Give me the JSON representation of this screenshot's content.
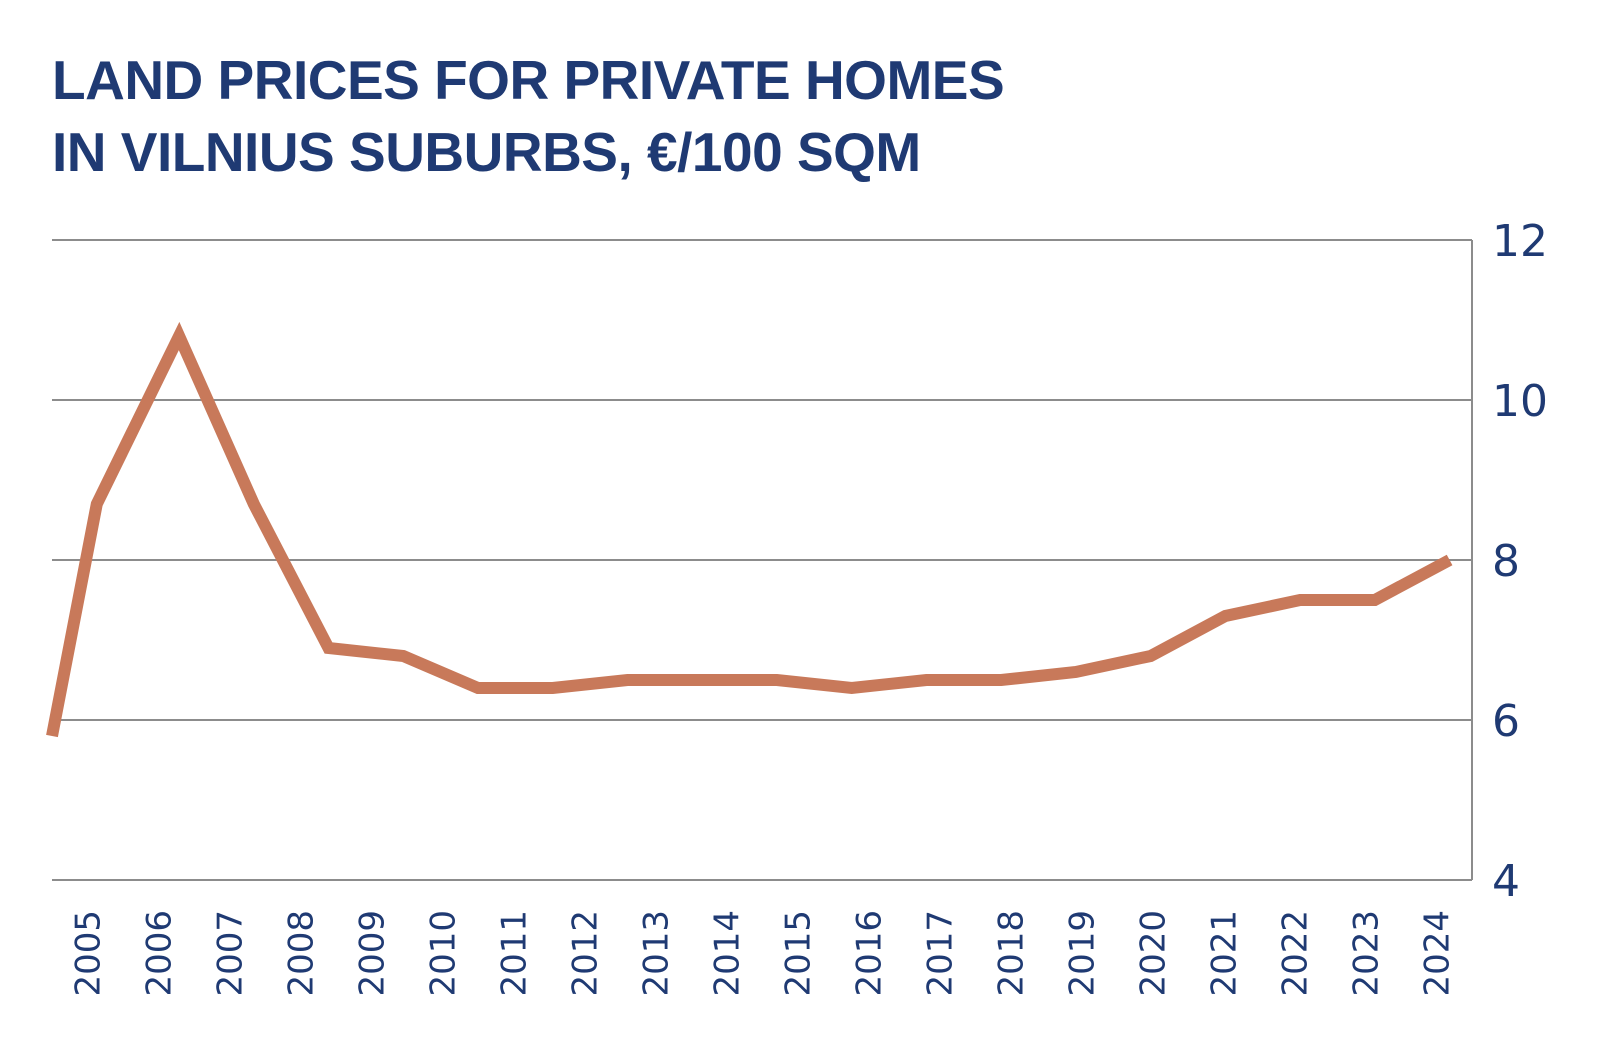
{
  "title": {
    "line1": "LAND PRICES FOR PRIVATE HOMES",
    "line2": "IN VILNIUS SUBURBS, €/100 SQM"
  },
  "colors": {
    "title": "#1f3a73",
    "ticks": "#1f3a73",
    "grid": "#8c8c8c",
    "line": "#c8795a"
  },
  "chart_data": {
    "type": "line",
    "title": "LAND PRICES FOR PRIVATE HOMES IN VILNIUS SUBURBS, €/100 SQM",
    "xlabel": "",
    "ylabel": "",
    "categories": [
      "2005",
      "2006",
      "2007",
      "2008",
      "2009",
      "2010",
      "2011",
      "2012",
      "2013",
      "2014",
      "2015",
      "2016",
      "2017",
      "2018",
      "2019",
      "2020",
      "2021",
      "2022",
      "2023",
      "2024"
    ],
    "x": [
      2005,
      2005.6,
      2006.7,
      2007.7,
      2008.7,
      2009.7,
      2010.7,
      2011.7,
      2012.7,
      2013.7,
      2014.7,
      2015.7,
      2016.7,
      2017.7,
      2018.7,
      2019.7,
      2020.7,
      2021.7,
      2022.7,
      2023.7
    ],
    "series": [
      {
        "values": [
          5.8,
          8.7,
          10.8,
          8.7,
          6.9,
          6.8,
          6.4,
          6.4,
          6.5,
          6.5,
          6.5,
          6.4,
          6.5,
          6.5,
          6.6,
          6.8,
          7.3,
          7.5,
          7.5,
          8.0
        ]
      }
    ],
    "yticks": [
      "4",
      "6",
      "8",
      "10",
      "12"
    ],
    "ylim": [
      4,
      12
    ],
    "y_axis_position": "right",
    "x_tick_orientation": "vertical",
    "grid": "horizontal",
    "legend": "none"
  }
}
